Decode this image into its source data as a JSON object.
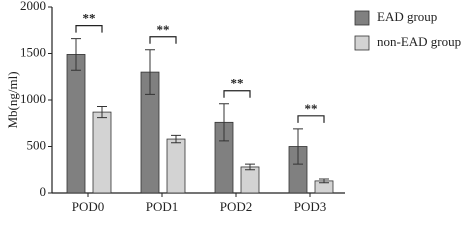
{
  "chart_data": {
    "type": "bar",
    "y_label": "Mb(ng/ml)",
    "categories": [
      "POD0",
      "POD1",
      "POD2",
      "POD3"
    ],
    "series": [
      {
        "name": "EAD group",
        "color": "#808080",
        "values": [
          1490,
          1300,
          760,
          500
        ],
        "errors": [
          170,
          240,
          200,
          190
        ]
      },
      {
        "name": "non-EAD group",
        "color": "#d3d3d3",
        "values": [
          870,
          580,
          280,
          130
        ],
        "errors": [
          60,
          40,
          30,
          20
        ]
      }
    ],
    "annotations": [
      "**",
      "**",
      "**",
      "**"
    ],
    "ylim": [
      0,
      2000
    ],
    "yticks": [
      0,
      500,
      1000,
      1500,
      2000
    ]
  }
}
